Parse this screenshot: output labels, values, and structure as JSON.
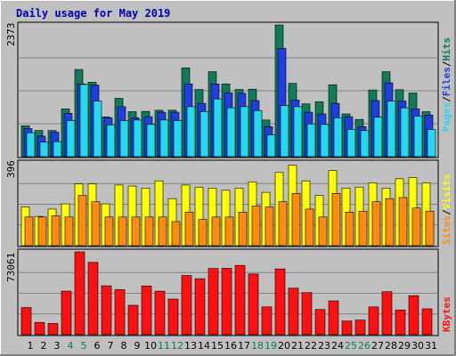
{
  "chart_data": {
    "type": "bar",
    "title": "Daily usage for May 2019",
    "categories": [
      "1",
      "2",
      "3",
      "4",
      "5",
      "6",
      "7",
      "8",
      "9",
      "10",
      "11",
      "12",
      "13",
      "14",
      "15",
      "16",
      "17",
      "18",
      "19",
      "20",
      "21",
      "22",
      "23",
      "24",
      "25",
      "26",
      "27",
      "28",
      "29",
      "30",
      "31"
    ],
    "weekend_days": [
      "4",
      "5",
      "11",
      "12",
      "18",
      "19",
      "25",
      "26"
    ],
    "panels": [
      {
        "name": "hits-files-pages",
        "ymax_label": "2373",
        "ymax": 2373,
        "grid": true,
        "series": [
          {
            "name": "Hits",
            "color": "#117a5a",
            "values": [
              555,
              470,
              470,
              860,
              1570,
              1340,
              715,
              1050,
              810,
              815,
              835,
              835,
              1600,
              1210,
              1530,
              1310,
              1210,
              1215,
              660,
              2373,
              1320,
              950,
              990,
              1295,
              770,
              670,
              1200,
              1530,
              1205,
              1145,
              810
            ]
          },
          {
            "name": "Files",
            "color": "#1f3ee0",
            "values": [
              505,
              370,
              440,
              780,
              1310,
              1290,
              700,
              900,
              700,
              720,
              800,
              800,
              1310,
              960,
              1310,
              1150,
              1140,
              1010,
              540,
              1950,
              1020,
              800,
              770,
              960,
              720,
              540,
              1010,
              1330,
              1000,
              860,
              750
            ]
          },
          {
            "name": "Pages",
            "color": "#25d8f0",
            "values": [
              430,
              260,
              270,
              650,
              1300,
              1000,
              570,
              650,
              660,
              580,
              660,
              650,
              900,
              810,
              1040,
              880,
              900,
              830,
              390,
              920,
              900,
              590,
              580,
              700,
              490,
              470,
              710,
              1000,
              880,
              730,
              490
            ]
          }
        ]
      },
      {
        "name": "visits-sites",
        "ymax_label": "396",
        "ymax": 396,
        "grid": true,
        "series": [
          {
            "name": "Visits",
            "color": "#ffff00",
            "values": [
              185,
              140,
              175,
              200,
              295,
              295,
              200,
              290,
              285,
              275,
              310,
              225,
              290,
              280,
              275,
              265,
              275,
              305,
              255,
              350,
              385,
              310,
              240,
              360,
              275,
              280,
              300,
              275,
              320,
              325,
              300
            ]
          },
          {
            "name": "Sites",
            "color": "#ff8c10",
            "values": [
              137,
              137,
              143,
              137,
              240,
              210,
              137,
              137,
              137,
              137,
              137,
              115,
              160,
              125,
              137,
              137,
              160,
              190,
              185,
              210,
              250,
              175,
              137,
              250,
              160,
              165,
              210,
              225,
              230,
              180,
              165
            ]
          }
        ]
      },
      {
        "name": "kbytes",
        "ymax_label": "73061",
        "ymax": 73061,
        "grid": true,
        "series": [
          {
            "name": "KBytes",
            "color": "#ff1010",
            "values": [
              23900,
              10800,
              9900,
              38400,
              73061,
              63800,
              43100,
              39700,
              25900,
              43000,
              38400,
              31400,
              52200,
              49400,
              58400,
              58600,
              61100,
              53500,
              24500,
              58000,
              41000,
              37100,
              22200,
              29800,
              12000,
              12900,
              24500,
              37900,
              21800,
              34400,
              22800
            ]
          }
        ]
      }
    ],
    "legend": {
      "panel1": {
        "hits": "Hits",
        "files": "Files",
        "pages": "Pages",
        "sep": "/"
      },
      "panel2": {
        "visits": "Visits",
        "sites": "Sites",
        "sep": "/"
      },
      "panel3": {
        "kbytes": "KBytes"
      }
    }
  },
  "colors": {
    "frame_bg": "#c0c0c0",
    "plot_bg": "#c0c0c0",
    "title": "#0000b0",
    "weekday_label": "#000000",
    "weekend_label": "#117a5a",
    "grid": "#808080"
  }
}
